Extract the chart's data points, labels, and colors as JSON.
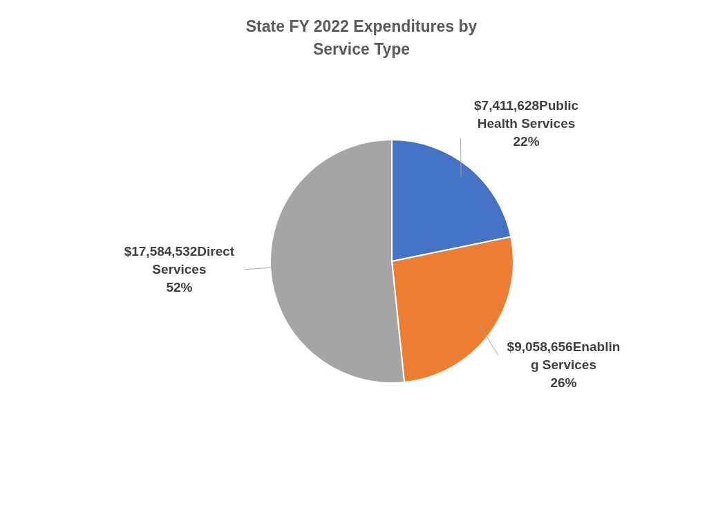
{
  "chart_data": {
    "type": "pie",
    "title": "State FY 2022 Expenditures by Service Type",
    "categories": [
      "Public Health Services",
      "Enabling Services",
      "Direct Services"
    ],
    "values": [
      7411628,
      9058656,
      17584532
    ],
    "colors": [
      "#4472c4",
      "#ed7d31",
      "#a5a5a5"
    ],
    "value_labels": [
      "$7,411,628",
      "$9,058,656",
      "$17,584,532"
    ],
    "annotations": [
      {
        "text": "22%",
        "x": "Public Health Services"
      },
      {
        "text": "26%",
        "x": "Enabling Services"
      },
      {
        "text": "52%",
        "x": "Direct Services"
      }
    ],
    "legend": false
  }
}
